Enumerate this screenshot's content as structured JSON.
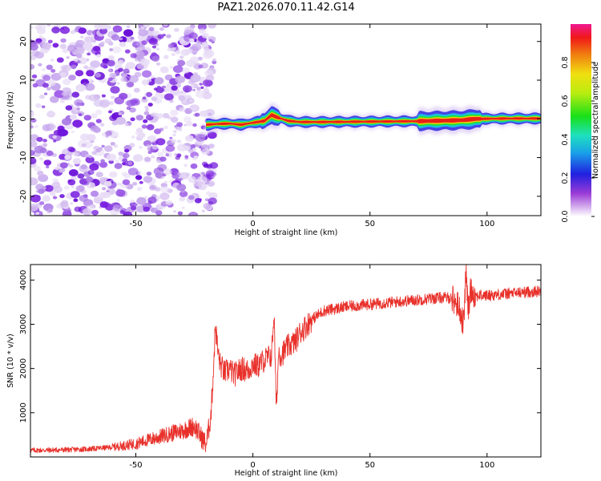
{
  "title": "PAZ1.2026.070.11.42.G14",
  "chart_data": [
    {
      "type": "heatmap",
      "name": "spectrogram",
      "xlabel": "Height of straight line (km)",
      "ylabel": "Frequency (Hz)",
      "xlim": [
        -95,
        123
      ],
      "ylim": [
        -25,
        24.5
      ],
      "xticks": [
        -50,
        0,
        50,
        100
      ],
      "yticks": [
        -20,
        -10,
        0,
        10,
        20
      ],
      "noise_region_x": [
        -95,
        -19
      ],
      "signal_line": {
        "x": [
          -20,
          -15,
          -10,
          -5,
          0,
          5,
          8,
          10,
          15,
          20,
          30,
          50,
          70,
          85,
          90,
          95,
          110,
          123
        ],
        "y": [
          -1.5,
          -1.3,
          -1.2,
          -1.5,
          -1.0,
          -0.5,
          1.0,
          0.5,
          -0.5,
          -0.8,
          -0.8,
          -0.7,
          -0.6,
          -0.4,
          -0.3,
          0.0,
          0.1,
          0.1
        ]
      },
      "colorbar": {
        "label": "Normalized spectral amplitude",
        "range": [
          0.0,
          1.0
        ],
        "ticks": [
          "0.0",
          "0.2",
          "0.4",
          "0.6",
          "0.8"
        ],
        "tick_values": [
          0.0,
          0.2,
          0.4,
          0.6,
          0.8
        ]
      }
    },
    {
      "type": "line",
      "name": "snr",
      "xlabel": "Height of straight line (km)",
      "ylabel": "SNR (10 * v/v)",
      "xlim": [
        -95,
        123
      ],
      "ylim": [
        0,
        4350
      ],
      "xticks": [
        -50,
        0,
        50,
        100
      ],
      "yticks": [
        1000,
        2000,
        3000,
        4000
      ],
      "color": "#e8302a",
      "series": [
        {
          "name": "SNR",
          "x": [
            -95,
            -80,
            -70,
            -60,
            -50,
            -45,
            -40,
            -35,
            -30,
            -25,
            -20,
            -18,
            -17,
            -16,
            -15,
            -14,
            -12,
            -10,
            -8,
            -5,
            -2,
            0,
            2,
            5,
            8,
            9,
            10,
            11,
            12,
            15,
            18,
            20,
            25,
            30,
            35,
            40,
            50,
            60,
            70,
            80,
            85,
            88,
            90,
            91,
            92,
            93,
            95,
            100,
            110,
            123
          ],
          "y": [
            150,
            160,
            180,
            220,
            300,
            380,
            450,
            530,
            600,
            700,
            280,
            900,
            1800,
            3000,
            2400,
            2100,
            1900,
            2000,
            1850,
            2000,
            1950,
            2100,
            2050,
            2200,
            2300,
            3300,
            1050,
            2400,
            2300,
            2500,
            2600,
            2800,
            3100,
            3300,
            3350,
            3400,
            3450,
            3500,
            3550,
            3600,
            3600,
            3400,
            3000,
            4200,
            3300,
            3800,
            3650,
            3650,
            3700,
            3750
          ]
        }
      ]
    }
  ],
  "colors": {
    "signal": "#e8302a",
    "noise": "#8a2be2"
  }
}
